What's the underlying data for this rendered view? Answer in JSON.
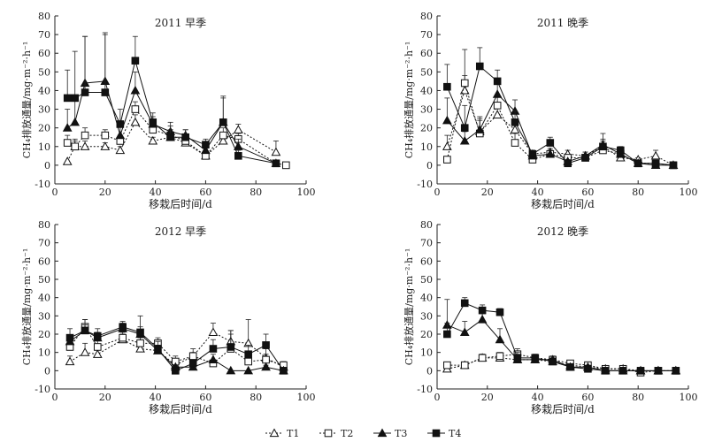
{
  "legend": {
    "T1": "T1",
    "T2": "T2",
    "T3": "T3",
    "T4": "T4"
  },
  "chart_data": [
    {
      "type": "line",
      "title": "2011 早季",
      "xlabel": "移栽后时间/d",
      "ylabel": "CH₄排放通量/mg·m⁻²·h⁻¹",
      "xlim": [
        0,
        100
      ],
      "ylim": [
        -10,
        80
      ],
      "xticks": [
        0,
        20,
        40,
        60,
        80,
        100
      ],
      "yticks": [
        -10,
        0,
        10,
        20,
        30,
        40,
        50,
        60,
        70,
        80
      ],
      "legend_position": "bottom",
      "series": [
        {
          "name": "T1",
          "x": [
            5,
            8,
            12,
            20,
            26,
            32,
            39,
            46,
            52,
            60,
            67,
            73,
            88
          ],
          "y": [
            2,
            10,
            10,
            10,
            8,
            23,
            13,
            15,
            12,
            5,
            13,
            19,
            7
          ],
          "err": [
            0,
            3,
            3,
            2,
            2,
            4,
            2,
            3,
            2,
            2,
            3,
            3,
            6
          ]
        },
        {
          "name": "T2",
          "x": [
            5,
            8,
            12,
            20,
            26,
            32,
            39,
            46,
            52,
            60,
            67,
            73,
            88,
            92
          ],
          "y": [
            12,
            10,
            16,
            16,
            13,
            30,
            19,
            16,
            13,
            5,
            16,
            14,
            1,
            0
          ],
          "err": [
            4,
            4,
            4,
            3,
            3,
            4,
            3,
            3,
            2,
            2,
            4,
            3,
            0,
            0
          ]
        },
        {
          "name": "T3",
          "x": [
            5,
            8,
            12,
            20,
            26,
            32,
            39,
            46,
            52,
            60,
            67,
            73,
            88
          ],
          "y": [
            20,
            23,
            44,
            45,
            16,
            40,
            22,
            18,
            16,
            8,
            23,
            10,
            1
          ],
          "err": [
            10,
            13,
            25,
            25,
            5,
            10,
            4,
            5,
            3,
            3,
            13,
            4,
            0
          ]
        },
        {
          "name": "T4",
          "x": [
            5,
            8,
            12,
            20,
            26,
            32,
            39,
            46,
            52,
            60,
            67,
            73,
            88
          ],
          "y": [
            36,
            36,
            39,
            39,
            22,
            56,
            23,
            15,
            15,
            11,
            23,
            5,
            1
          ],
          "err": [
            15,
            25,
            30,
            32,
            8,
            13,
            5,
            6,
            4,
            3,
            14,
            3,
            0
          ]
        }
      ]
    },
    {
      "type": "line",
      "title": "2011 晚季",
      "xlabel": "移栽后时间/d",
      "ylabel": "CH₄排放通量/mg·m⁻²·h⁻¹",
      "xlim": [
        0,
        100
      ],
      "ylim": [
        -10,
        80
      ],
      "xticks": [
        0,
        20,
        40,
        60,
        80,
        100
      ],
      "yticks": [
        -10,
        0,
        10,
        20,
        30,
        40,
        50,
        60,
        70,
        80
      ],
      "legend_position": "bottom",
      "series": [
        {
          "name": "T1",
          "x": [
            4,
            11,
            17,
            24,
            31,
            38,
            45,
            52,
            59,
            66,
            73,
            80,
            87,
            94
          ],
          "y": [
            10,
            40,
            18,
            27,
            19,
            6,
            7,
            6,
            5,
            10,
            4,
            3,
            5,
            0
          ],
          "err": [
            6,
            8,
            6,
            5,
            5,
            2,
            2,
            2,
            2,
            3,
            2,
            1,
            3,
            0
          ]
        },
        {
          "name": "T2",
          "x": [
            4,
            11,
            17,
            24,
            31,
            38,
            45,
            52,
            59,
            66,
            73,
            80,
            87,
            94
          ],
          "y": [
            3,
            44,
            17,
            32,
            12,
            3,
            6,
            4,
            4,
            8,
            6,
            1,
            1,
            0
          ],
          "err": [
            0,
            18,
            8,
            5,
            5,
            1,
            2,
            1,
            1,
            3,
            2,
            0,
            0,
            0
          ]
        },
        {
          "name": "T3",
          "x": [
            4,
            11,
            17,
            24,
            31,
            38,
            45,
            52,
            59,
            66,
            73,
            80,
            87,
            94
          ],
          "y": [
            24,
            13,
            19,
            38,
            29,
            5,
            6,
            2,
            5,
            11,
            6,
            1,
            0,
            0
          ],
          "err": [
            12,
            5,
            7,
            8,
            6,
            2,
            2,
            1,
            2,
            3,
            2,
            0,
            0,
            0
          ]
        },
        {
          "name": "T4",
          "x": [
            4,
            11,
            17,
            24,
            31,
            38,
            45,
            52,
            59,
            66,
            73,
            80,
            87,
            94
          ],
          "y": [
            42,
            20,
            53,
            45,
            23,
            6,
            12,
            1,
            4,
            10,
            8,
            1,
            1,
            0
          ],
          "err": [
            12,
            12,
            10,
            6,
            6,
            2,
            3,
            1,
            1,
            7,
            2,
            0,
            0,
            0
          ]
        }
      ]
    },
    {
      "type": "line",
      "title": "2012 早季",
      "xlabel": "移栽后时间/d",
      "ylabel": "CH₄排放通量/mg·m⁻²·h⁻¹",
      "xlim": [
        0,
        100
      ],
      "ylim": [
        -10,
        80
      ],
      "xticks": [
        0,
        20,
        40,
        60,
        80,
        100
      ],
      "yticks": [
        -10,
        0,
        10,
        20,
        30,
        40,
        50,
        60,
        70,
        80
      ],
      "legend_position": "bottom",
      "series": [
        {
          "name": "T1",
          "x": [
            6,
            12,
            17,
            27,
            34,
            41,
            48,
            55,
            63,
            70,
            77,
            84,
            91
          ],
          "y": [
            5,
            10,
            9,
            17,
            12,
            11,
            3,
            8,
            21,
            16,
            15,
            7,
            2
          ],
          "err": [
            3,
            5,
            3,
            3,
            3,
            3,
            2,
            4,
            5,
            6,
            13,
            5,
            2
          ]
        },
        {
          "name": "T2",
          "x": [
            6,
            12,
            17,
            27,
            34,
            41,
            48,
            55,
            63,
            70,
            77,
            84,
            91
          ],
          "y": [
            13,
            24,
            13,
            18,
            15,
            15,
            5,
            8,
            4,
            12,
            5,
            6,
            3
          ],
          "err": [
            4,
            4,
            4,
            3,
            3,
            3,
            3,
            2,
            2,
            8,
            3,
            3,
            2
          ]
        },
        {
          "name": "T3",
          "x": [
            6,
            12,
            17,
            27,
            34,
            41,
            48,
            55,
            63,
            70,
            77,
            84,
            91
          ],
          "y": [
            16,
            22,
            18,
            23,
            20,
            11,
            2,
            2,
            6,
            0,
            0,
            2,
            0
          ],
          "err": [
            3,
            3,
            3,
            3,
            4,
            3,
            1,
            1,
            3,
            0,
            0,
            1,
            0
          ]
        },
        {
          "name": "T4",
          "x": [
            6,
            12,
            17,
            27,
            34,
            41,
            48,
            55,
            63,
            70,
            77,
            84,
            91
          ],
          "y": [
            18,
            22,
            19,
            24,
            21,
            12,
            0,
            4,
            12,
            13,
            9,
            14,
            0
          ],
          "err": [
            5,
            6,
            4,
            3,
            9,
            4,
            1,
            2,
            5,
            9,
            5,
            6,
            0
          ]
        }
      ]
    },
    {
      "type": "line",
      "title": "2012 晚季",
      "xlabel": "移栽后时间/d",
      "ylabel": "CH₄排放通量/mg·m⁻²·h⁻¹",
      "xlim": [
        0,
        100
      ],
      "ylim": [
        -10,
        80
      ],
      "xticks": [
        0,
        20,
        40,
        60,
        80,
        100
      ],
      "yticks": [
        -10,
        0,
        10,
        20,
        30,
        40,
        50,
        60,
        70,
        80
      ],
      "legend_position": "bottom",
      "series": [
        {
          "name": "T1",
          "x": [
            4,
            11,
            18,
            25,
            32,
            39,
            46,
            53,
            60,
            67,
            74,
            81,
            88,
            95
          ],
          "y": [
            1,
            3,
            7,
            7,
            6,
            6,
            5,
            3,
            2,
            1,
            1,
            0,
            0,
            0
          ],
          "err": [
            0,
            1,
            2,
            2,
            2,
            2,
            2,
            1,
            1,
            0,
            0,
            0,
            0,
            0
          ]
        },
        {
          "name": "T2",
          "x": [
            4,
            11,
            18,
            25,
            32,
            39,
            46,
            53,
            60,
            67,
            74,
            81,
            88,
            95
          ],
          "y": [
            3,
            3,
            7,
            8,
            9,
            7,
            6,
            4,
            3,
            1,
            1,
            -1,
            0,
            0
          ],
          "err": [
            0,
            1,
            2,
            2,
            3,
            2,
            2,
            1,
            1,
            1,
            0,
            1,
            0,
            0
          ]
        },
        {
          "name": "T3",
          "x": [
            4,
            11,
            18,
            25,
            32,
            39,
            46,
            53,
            60,
            67,
            74,
            81,
            88,
            95
          ],
          "y": [
            25,
            21,
            28,
            17,
            6,
            6,
            6,
            2,
            2,
            0,
            0,
            0,
            0,
            0
          ],
          "err": [
            14,
            6,
            6,
            6,
            3,
            2,
            2,
            1,
            1,
            0,
            0,
            0,
            0,
            0
          ]
        },
        {
          "name": "T4",
          "x": [
            4,
            11,
            18,
            25,
            32,
            39,
            46,
            53,
            60,
            67,
            74,
            81,
            88,
            95
          ],
          "y": [
            20,
            37,
            33,
            32,
            7,
            7,
            5,
            2,
            1,
            0,
            0,
            0,
            0,
            0
          ],
          "err": [
            6,
            3,
            3,
            2,
            3,
            2,
            2,
            1,
            1,
            0,
            0,
            0,
            0,
            0
          ]
        }
      ]
    }
  ]
}
